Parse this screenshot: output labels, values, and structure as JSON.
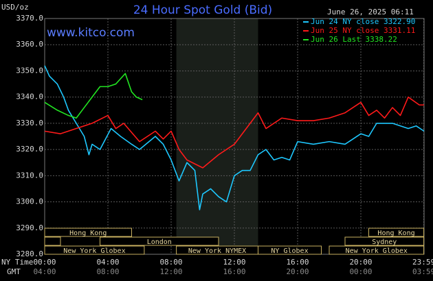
{
  "chart_data": {
    "type": "line",
    "title": "24 Hour Spot Gold (Bid)",
    "watermark": "www.kitco.com",
    "timestamp": "June 26, 2025 06:11",
    "y_label": "USD/oz",
    "x_label": "NY Time",
    "x2_label": "GMT",
    "xlim": [
      0,
      24
    ],
    "ylim": [
      3280,
      3370
    ],
    "xticks": [
      {
        "value": 0,
        "label": "00:00"
      },
      {
        "value": 4,
        "label": "04:00"
      },
      {
        "value": 8,
        "label": "08:00"
      },
      {
        "value": 12,
        "label": "12:00"
      },
      {
        "value": 16,
        "label": "16:00"
      },
      {
        "value": 20,
        "label": "20:00"
      },
      {
        "value": 23.98,
        "label": "23:59"
      }
    ],
    "gmt_labels": [
      "04:00",
      "08:00",
      "12:00",
      "16:00",
      "20:00",
      "00:00",
      "03:59"
    ],
    "yticks": [
      {
        "value": 3280,
        "label": "3280.0"
      },
      {
        "value": 3290,
        "label": "3290.0"
      },
      {
        "value": 3300,
        "label": "3300.0"
      },
      {
        "value": 3310,
        "label": "3310.0"
      },
      {
        "value": 3320,
        "label": "3320.0"
      },
      {
        "value": 3330,
        "label": "3330.0"
      },
      {
        "value": 3340,
        "label": "3340.0"
      },
      {
        "value": 3350,
        "label": "3350.0"
      },
      {
        "value": 3360,
        "label": "3360.0"
      },
      {
        "value": 3370,
        "label": "3370.0"
      }
    ],
    "grid": true,
    "shaded_region": [
      8.33,
      13.5
    ],
    "series": [
      {
        "name": "Jun 24 NY close 3322.90",
        "color": "#1ec8ff",
        "x": [
          0,
          0.3,
          0.8,
          1.2,
          1.5,
          2,
          2.5,
          2.8,
          3,
          3.5,
          4.2,
          4.8,
          5.5,
          6,
          7,
          7.5,
          8,
          8.5,
          9,
          9.5,
          9.8,
          10,
          10.5,
          11,
          11.5,
          12,
          12.5,
          13,
          13.5,
          14,
          14.5,
          15,
          15.5,
          16,
          17,
          18,
          19,
          20,
          20.5,
          21,
          22,
          23,
          23.5,
          24
        ],
        "values": [
          3352,
          3348,
          3345,
          3340,
          3335,
          3330,
          3325,
          3318,
          3322,
          3320,
          3328,
          3325,
          3322,
          3320,
          3325,
          3322,
          3316,
          3308,
          3315,
          3312,
          3297,
          3303,
          3305,
          3302,
          3300,
          3310,
          3312,
          3312,
          3318,
          3320,
          3316,
          3317,
          3316,
          3323,
          3322,
          3323,
          3322,
          3326,
          3325,
          3330,
          3330,
          3328,
          3329,
          3327
        ]
      },
      {
        "name": "Jun 25 NY close 3331.11",
        "color": "#ff1a1a",
        "x": [
          0,
          1,
          2,
          3,
          4,
          4.5,
          5,
          6,
          7,
          7.5,
          8,
          8.5,
          9,
          10,
          11,
          12,
          13,
          13.5,
          14,
          15,
          16,
          17,
          18,
          19,
          20,
          20.5,
          21,
          21.5,
          22,
          22.5,
          23,
          23.7,
          24
        ],
        "values": [
          3327,
          3326,
          3328,
          3330,
          3333,
          3328,
          3330,
          3323,
          3327,
          3324,
          3327,
          3320,
          3316,
          3313,
          3318,
          3322,
          3330,
          3334,
          3328,
          3332,
          3331,
          3331,
          3332,
          3334,
          3338,
          3333,
          3335,
          3332,
          3336,
          3333,
          3340,
          3337,
          3337
        ]
      },
      {
        "name": "Jun 26 Last 3338.22",
        "color": "#22e622",
        "x": [
          0,
          0.8,
          1.5,
          2,
          2.5,
          3,
          3.5,
          4,
          4.5,
          5.1,
          5.5,
          5.8,
          6.18
        ],
        "values": [
          3338,
          3335,
          3333,
          3332,
          3336,
          3340,
          3344,
          3344,
          3345,
          3349,
          3342,
          3340,
          3339
        ]
      }
    ],
    "sessions": [
      {
        "name": "Hong Kong",
        "row": 0,
        "start": 0,
        "end": 5.5
      },
      {
        "name": "Hong Kong",
        "row": 0,
        "start": 20.5,
        "end": 23.98
      },
      {
        "row": 1,
        "start": 0,
        "end": 1
      },
      {
        "name": "London",
        "row": 1,
        "start": 3.5,
        "end": 11
      },
      {
        "name": "Sydney",
        "row": 1,
        "start": 19,
        "end": 23.98
      },
      {
        "name": "New York Globex",
        "row": 2,
        "start": 0,
        "end": 6.3
      },
      {
        "name": "New York NYMEX",
        "row": 2,
        "start": 8.33,
        "end": 13.5
      },
      {
        "name": "NY Globex",
        "row": 2,
        "start": 13.5,
        "end": 17.5
      },
      {
        "name": "New York Globex",
        "row": 2,
        "start": 18,
        "end": 23.98
      }
    ]
  }
}
